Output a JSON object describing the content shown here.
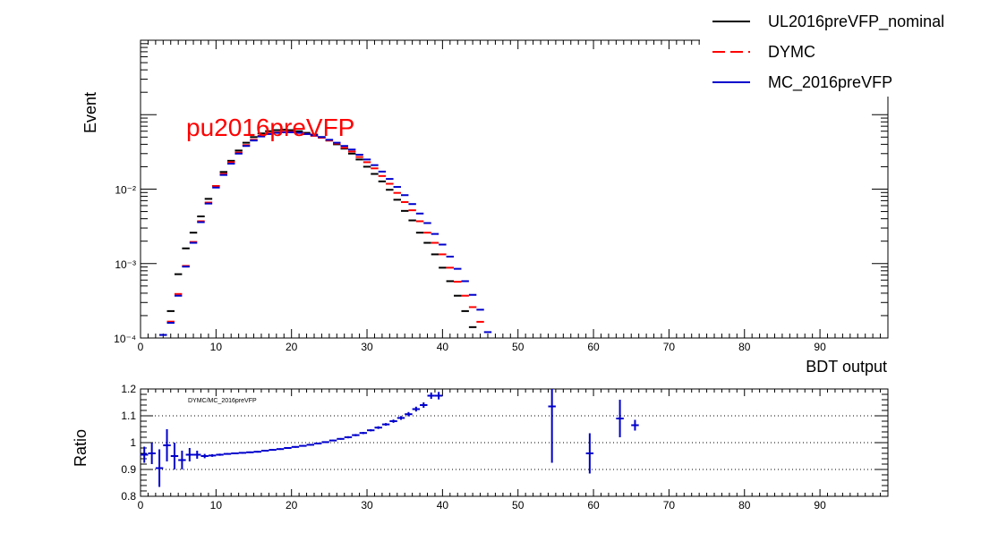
{
  "chart_data": [
    {
      "type": "scatter",
      "panel": "main",
      "yscale": "log",
      "ylabel": "Event",
      "xlabel": "BDT output",
      "xlim": [
        0,
        99
      ],
      "ylim": [
        0.0001,
        1.0
      ],
      "x_ticks": [
        "0",
        "10",
        "20",
        "30",
        "40",
        "50",
        "60",
        "70",
        "80",
        "90"
      ],
      "y_ticks": [
        "10⁻⁴",
        "10⁻³",
        "10⁻²"
      ],
      "annotation": "pu2016preVFP",
      "legend": {
        "placement": "top-right",
        "entries": [
          {
            "name": "UL2016preVFP_nominal",
            "color": "#000000",
            "style": "solid"
          },
          {
            "name": "DYMC",
            "color": "#ff0000",
            "style": "dashed"
          },
          {
            "name": "MC_2016preVFP",
            "color": "#0000cc",
            "style": "solid"
          }
        ]
      },
      "x": [
        3,
        4,
        5,
        6,
        7,
        8,
        9,
        10,
        11,
        12,
        13,
        14,
        15,
        16,
        17,
        18,
        19,
        20,
        21,
        22,
        23,
        24,
        25,
        26,
        27,
        28,
        29,
        30,
        31,
        32,
        33,
        34,
        35,
        36,
        37,
        38,
        39,
        40,
        41,
        42,
        43,
        44,
        45,
        46
      ],
      "series": [
        {
          "name": "UL2016preVFP_nominal",
          "color": "#000000",
          "values": [
            0.00011,
            0.00023,
            0.00072,
            0.0016,
            0.0026,
            0.0043,
            0.0074,
            0.011,
            0.017,
            0.024,
            0.033,
            0.042,
            0.05,
            0.056,
            0.06,
            0.062,
            0.063,
            0.062,
            0.06,
            0.057,
            0.054,
            0.05,
            0.045,
            0.04,
            0.035,
            0.03,
            0.025,
            0.02,
            0.016,
            0.0127,
            0.0098,
            0.0072,
            0.0051,
            0.0038,
            0.0026,
            0.0019,
            0.00133,
            0.00088,
            0.00058,
            0.00037,
            0.00023,
            0.00014,
            null,
            null
          ]
        },
        {
          "name": "DYMC",
          "color": "#ff0000",
          "values": [
            null,
            0.000166,
            0.00039,
            0.00093,
            0.00195,
            0.0037,
            0.0066,
            0.011,
            0.016,
            0.023,
            0.031,
            0.039,
            0.046,
            0.052,
            0.056,
            0.058,
            0.059,
            0.059,
            0.057,
            0.055,
            0.052,
            0.049,
            0.045,
            0.041,
            0.036,
            0.032,
            0.027,
            0.023,
            0.019,
            0.015,
            0.0118,
            0.0089,
            0.0067,
            0.0052,
            0.0037,
            0.0026,
            0.0019,
            0.00133,
            0.00088,
            0.00057,
            0.00037,
            0.00026,
            0.000165,
            null
          ]
        },
        {
          "name": "MC_2016preVFP",
          "color": "#0000cc",
          "values": [
            0.00011,
            0.00016,
            0.00037,
            0.00091,
            0.0019,
            0.0036,
            0.0064,
            0.0105,
            0.0155,
            0.022,
            0.03,
            0.038,
            0.045,
            0.051,
            0.055,
            0.057,
            0.058,
            0.058,
            0.057,
            0.055,
            0.053,
            0.05,
            0.046,
            0.042,
            0.038,
            0.034,
            0.029,
            0.025,
            0.021,
            0.0172,
            0.0137,
            0.0107,
            0.0083,
            0.0063,
            0.0047,
            0.0035,
            0.0025,
            0.0018,
            0.00124,
            0.00085,
            0.00058,
            0.00038,
            0.00024,
            0.00012
          ]
        }
      ]
    },
    {
      "type": "scatter",
      "panel": "ratio",
      "ylabel": "Ratio",
      "xlim": [
        0,
        99
      ],
      "ylim": [
        0.8,
        1.2
      ],
      "x_ticks": [
        "0",
        "10",
        "20",
        "30",
        "40",
        "50",
        "60",
        "70",
        "80",
        "90"
      ],
      "y_ticks": [
        "0.8",
        "0.9",
        "1",
        "1.1",
        "1.2"
      ],
      "grid": "dotted at 0.9, 1, 1.1",
      "annotation": "DYMC/MC_2016preVFP",
      "series": [
        {
          "name": "DYMC/MC_2016preVFP",
          "color": "#0000cc",
          "points": [
            {
              "x": 0.5,
              "y": 0.955,
              "err": 0.03
            },
            {
              "x": 1.5,
              "y": 0.96,
              "err": 0.04
            },
            {
              "x": 2.5,
              "y": 0.905,
              "err": 0.07
            },
            {
              "x": 3.5,
              "y": 0.99,
              "err": 0.06
            },
            {
              "x": 4.5,
              "y": 0.95,
              "err": 0.05
            },
            {
              "x": 5.5,
              "y": 0.935,
              "err": 0.035
            },
            {
              "x": 6.5,
              "y": 0.955,
              "err": 0.025
            },
            {
              "x": 7.5,
              "y": 0.955,
              "err": 0.015
            },
            {
              "x": 8.5,
              "y": 0.95,
              "err": 0.008
            },
            {
              "x": 9.5,
              "y": 0.952,
              "err": 0.005
            },
            {
              "x": 10.5,
              "y": 0.955,
              "err": 0.004
            },
            {
              "x": 11.5,
              "y": 0.958,
              "err": 0.003
            },
            {
              "x": 12.5,
              "y": 0.96,
              "err": 0.003
            },
            {
              "x": 13.5,
              "y": 0.962,
              "err": 0.003
            },
            {
              "x": 14.5,
              "y": 0.964,
              "err": 0.003
            },
            {
              "x": 15.5,
              "y": 0.966,
              "err": 0.003
            },
            {
              "x": 16.5,
              "y": 0.97,
              "err": 0.003
            },
            {
              "x": 17.5,
              "y": 0.973,
              "err": 0.003
            },
            {
              "x": 18.5,
              "y": 0.976,
              "err": 0.003
            },
            {
              "x": 19.5,
              "y": 0.98,
              "err": 0.003
            },
            {
              "x": 20.5,
              "y": 0.984,
              "err": 0.003
            },
            {
              "x": 21.5,
              "y": 0.988,
              "err": 0.003
            },
            {
              "x": 22.5,
              "y": 0.992,
              "err": 0.003
            },
            {
              "x": 23.5,
              "y": 0.997,
              "err": 0.003
            },
            {
              "x": 24.5,
              "y": 1.002,
              "err": 0.003
            },
            {
              "x": 25.5,
              "y": 1.008,
              "err": 0.003
            },
            {
              "x": 26.5,
              "y": 1.014,
              "err": 0.003
            },
            {
              "x": 27.5,
              "y": 1.02,
              "err": 0.004
            },
            {
              "x": 28.5,
              "y": 1.028,
              "err": 0.004
            },
            {
              "x": 29.5,
              "y": 1.036,
              "err": 0.004
            },
            {
              "x": 30.5,
              "y": 1.046,
              "err": 0.004
            },
            {
              "x": 31.5,
              "y": 1.056,
              "err": 0.005
            },
            {
              "x": 32.5,
              "y": 1.068,
              "err": 0.005
            },
            {
              "x": 33.5,
              "y": 1.08,
              "err": 0.006
            },
            {
              "x": 34.5,
              "y": 1.092,
              "err": 0.007
            },
            {
              "x": 35.5,
              "y": 1.106,
              "err": 0.008
            },
            {
              "x": 36.5,
              "y": 1.125,
              "err": 0.009
            },
            {
              "x": 37.5,
              "y": 1.14,
              "err": 0.01
            },
            {
              "x": 38.5,
              "y": 1.175,
              "err": 0.012
            },
            {
              "x": 39.5,
              "y": 1.175,
              "err": 0.014
            },
            {
              "x": 54.5,
              "y": 1.135,
              "err": 0.21
            },
            {
              "x": 59.5,
              "y": 0.96,
              "err": 0.075
            },
            {
              "x": 63.5,
              "y": 1.09,
              "err": 0.07
            },
            {
              "x": 65.5,
              "y": 1.065,
              "err": 0.02
            }
          ]
        }
      ]
    }
  ]
}
